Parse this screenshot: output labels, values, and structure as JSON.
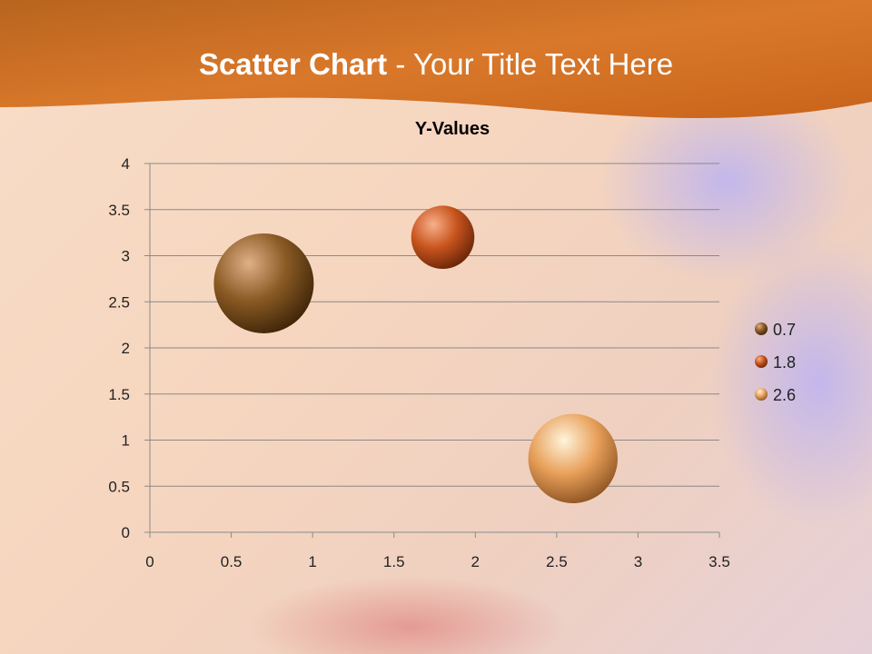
{
  "slide": {
    "title_bold": "Scatter Chart",
    "title_rest": " - Your Title Text Here",
    "header_color": "#d9782a"
  },
  "chart_data": {
    "type": "bubble",
    "title": "Y-Values",
    "xlim": [
      0,
      3.5
    ],
    "ylim": [
      0,
      4
    ],
    "x_ticks": [
      "0",
      "0.5",
      "1",
      "1.5",
      "2",
      "2.5",
      "3",
      "3.5"
    ],
    "y_ticks": [
      "0",
      "0.5",
      "1",
      "1.5",
      "2",
      "2.5",
      "3",
      "3.5",
      "4"
    ],
    "grid": "horizontal",
    "legend_position": "right",
    "points": [
      {
        "label": "0.7",
        "x": 0.7,
        "y": 2.7,
        "size": 10,
        "color": "#8a5a24"
      },
      {
        "label": "1.8",
        "x": 1.8,
        "y": 3.2,
        "size": 4,
        "color": "#c8541e"
      },
      {
        "label": "2.6",
        "x": 2.6,
        "y": 0.8,
        "size": 8,
        "color": "#e8a05a"
      }
    ]
  }
}
